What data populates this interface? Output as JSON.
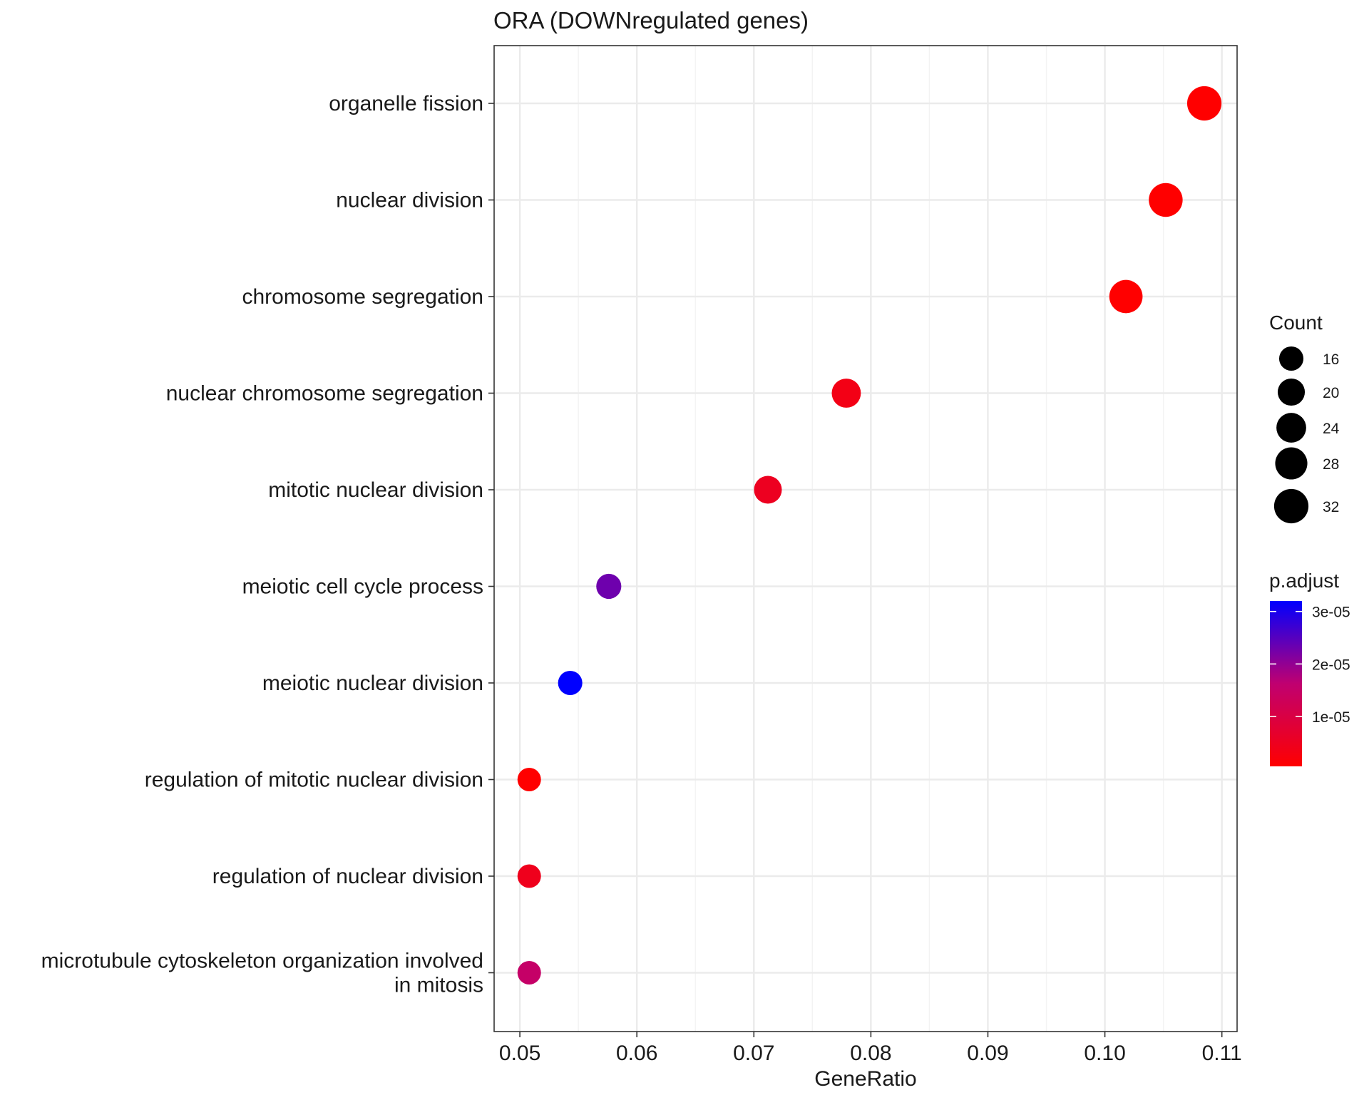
{
  "chart_data": {
    "type": "scatter",
    "title": "ORA (DOWNregulated genes)",
    "xlabel": "GeneRatio",
    "ylabel": "",
    "xlim": [
      0.0478,
      0.1113
    ],
    "x_ticks": [
      "0.05",
      "0.06",
      "0.07",
      "0.08",
      "0.09",
      "0.10",
      "0.11"
    ],
    "x_tick_values": [
      0.05,
      0.06,
      0.07,
      0.08,
      0.09,
      0.1,
      0.11
    ],
    "grid": true,
    "categories": [
      [
        "organelle fission"
      ],
      [
        "nuclear division"
      ],
      [
        "chromosome segregation"
      ],
      [
        "nuclear chromosome segregation"
      ],
      [
        "mitotic nuclear division"
      ],
      [
        "meiotic cell cycle process"
      ],
      [
        "meiotic nuclear division"
      ],
      [
        "regulation of mitotic nuclear division"
      ],
      [
        "regulation of nuclear division"
      ],
      [
        "microtubule cytoskeleton organization involved",
        "in mitosis"
      ]
    ],
    "points": [
      {
        "x": 0.1085,
        "count": 32,
        "p_adjust": 5e-07
      },
      {
        "x": 0.1052,
        "count": 31,
        "p_adjust": 5e-07
      },
      {
        "x": 0.1018,
        "count": 30,
        "p_adjust": 5e-07
      },
      {
        "x": 0.0779,
        "count": 23,
        "p_adjust": 3.5e-06
      },
      {
        "x": 0.0712,
        "count": 21,
        "p_adjust": 5e-06
      },
      {
        "x": 0.0576,
        "count": 17,
        "p_adjust": 2.3e-05
      },
      {
        "x": 0.0543,
        "count": 16,
        "p_adjust": 3.2e-05
      },
      {
        "x": 0.0508,
        "count": 15,
        "p_adjust": 5e-07
      },
      {
        "x": 0.0508,
        "count": 15,
        "p_adjust": 4.5e-06
      },
      {
        "x": 0.0508,
        "count": 15,
        "p_adjust": 1.5e-05
      }
    ],
    "size_legend": {
      "title": "Count",
      "labels": [
        "16",
        "20",
        "24",
        "28",
        "32"
      ],
      "values": [
        16,
        20,
        24,
        28,
        32
      ]
    },
    "color_legend": {
      "title": "p.adjust",
      "labels": [
        "3e-05",
        "2e-05",
        "1e-05"
      ],
      "values": [
        3e-05,
        2e-05,
        1e-05
      ],
      "range": [
        5e-07,
        3.2e-05
      ],
      "low_color": "#ff0000",
      "high_color": "#0000ff"
    }
  }
}
